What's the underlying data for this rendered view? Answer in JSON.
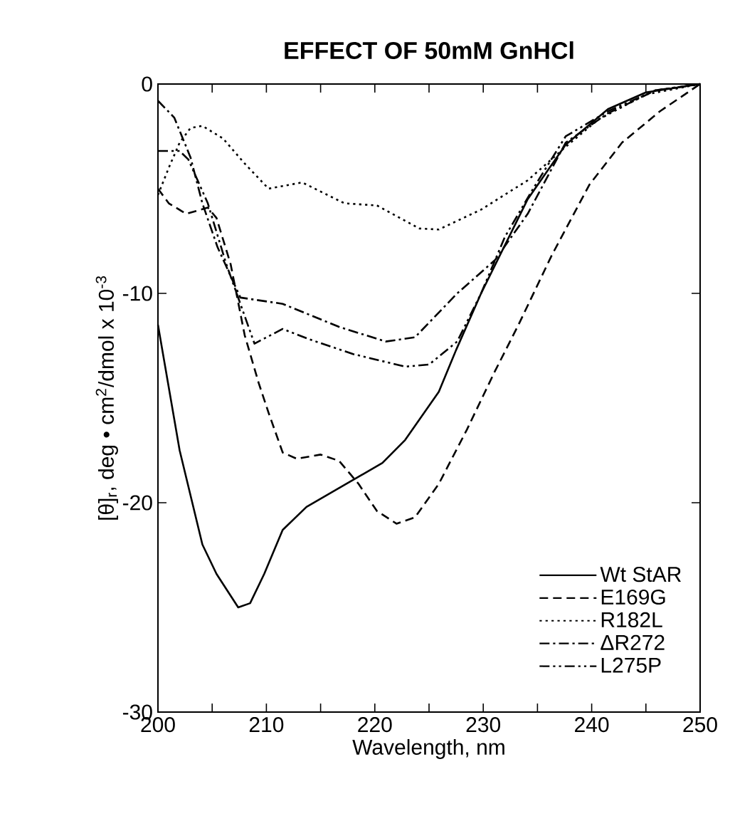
{
  "chart_data": {
    "type": "line",
    "title": "EFFECT OF 50mM GnHCl",
    "xlabel": "Wavelength, nm",
    "ylabel": "[θ]$_{r}$, deg • cm$^{2}$/dmol x 10$^{-3}$",
    "xlim": [
      200,
      250
    ],
    "ylim": [
      -30,
      0
    ],
    "xticks": [
      200,
      {
        "value": 205,
        "label": null
      },
      210,
      {
        "value": 215,
        "label": null
      },
      220,
      {
        "value": 225,
        "label": null
      },
      230,
      {
        "value": 235,
        "label": null
      },
      240,
      {
        "value": 245,
        "label": null
      },
      250
    ],
    "yticks": [
      -30,
      -20,
      -10,
      0
    ],
    "grid": false,
    "legend": "bottom right",
    "series": [
      {
        "name": "Wt StAR",
        "color": "#000000",
        "line_style": "solid",
        "x": [
          200,
          202,
          204.1,
          205.4,
          207.4,
          208.5,
          209.8,
          211.5,
          213.7,
          216.7,
          220.7,
          222.8,
          225.9,
          227.5,
          229.8,
          234.1,
          237.6,
          241.5,
          245,
          250
        ],
        "values": [
          -11.5,
          -17.5,
          -22,
          -23.4,
          -25,
          -24.8,
          -23.4,
          -21.3,
          -20.2,
          -19.3,
          -18.1,
          -17,
          -14.7,
          -12.7,
          -10,
          -5.5,
          -2.9,
          -1.2,
          -0.4,
          0
        ]
      },
      {
        "name": "E169G",
        "color": "#000000",
        "line_style": "dashed",
        "x": [
          200,
          201,
          202.6,
          204.6,
          205.4,
          206.7,
          208,
          209.3,
          210.2,
          211.5,
          212.8,
          215,
          216.7,
          218.5,
          220.2,
          222,
          223.7,
          225.9,
          228.5,
          231,
          233.25,
          236.3,
          239.8,
          242.8,
          246.3,
          250
        ],
        "values": [
          -5,
          -5.7,
          -6.2,
          -5.9,
          -6.4,
          -8.6,
          -12,
          -14.3,
          -15.7,
          -17.6,
          -17.9,
          -17.7,
          -18,
          -19.1,
          -20.4,
          -21,
          -20.7,
          -19.1,
          -16.5,
          -13.8,
          -11.5,
          -8.2,
          -4.8,
          -2.8,
          -1.3,
          0
        ]
      },
      {
        "name": "R182L",
        "color": "#000000",
        "line_style": "dotted",
        "x": [
          200,
          201,
          202,
          203,
          204.1,
          206,
          208,
          210.2,
          213.3,
          217.2,
          220.2,
          224.1,
          225.9,
          229.8,
          234.1,
          237.6,
          240.6,
          245,
          250
        ],
        "values": [
          -5.3,
          -4,
          -2.8,
          -2.1,
          -2,
          -2.6,
          -3.8,
          -5,
          -4.7,
          -5.7,
          -5.8,
          -6.9,
          -6.95,
          -6,
          -4.6,
          -3,
          -1.7,
          -0.5,
          0
        ]
      },
      {
        "name": "ΔR272",
        "color": "#000000",
        "line_style": "dashdot",
        "x": [
          200,
          201.5,
          203,
          204.1,
          205.5,
          207.6,
          211.5,
          216.7,
          221,
          223.7,
          227.6,
          231.1,
          234.1,
          237.6,
          241.5,
          245.9,
          250
        ],
        "values": [
          -0.8,
          -1.6,
          -3.5,
          -5.7,
          -7.8,
          -10.2,
          -10.5,
          -11.6,
          -12.3,
          -12.1,
          -10,
          -8.4,
          -6.2,
          -2.8,
          -1.4,
          -0.3,
          0
        ]
      },
      {
        "name": "L275P",
        "color": "#000000",
        "line_style": "dashdotdot",
        "x": [
          200,
          202,
          202.8,
          204.6,
          206.3,
          208.9,
          211.5,
          214,
          218,
          222.8,
          225,
          227.6,
          229.8,
          232,
          234.6,
          237.6,
          241.5,
          245.9,
          250
        ],
        "values": [
          -3.2,
          -3.2,
          -3.6,
          -5.7,
          -8.6,
          -12.4,
          -11.7,
          -12.2,
          -12.9,
          -13.5,
          -13.4,
          -12.3,
          -10,
          -7.3,
          -5,
          -2.5,
          -1.3,
          -0.3,
          0
        ]
      }
    ]
  }
}
